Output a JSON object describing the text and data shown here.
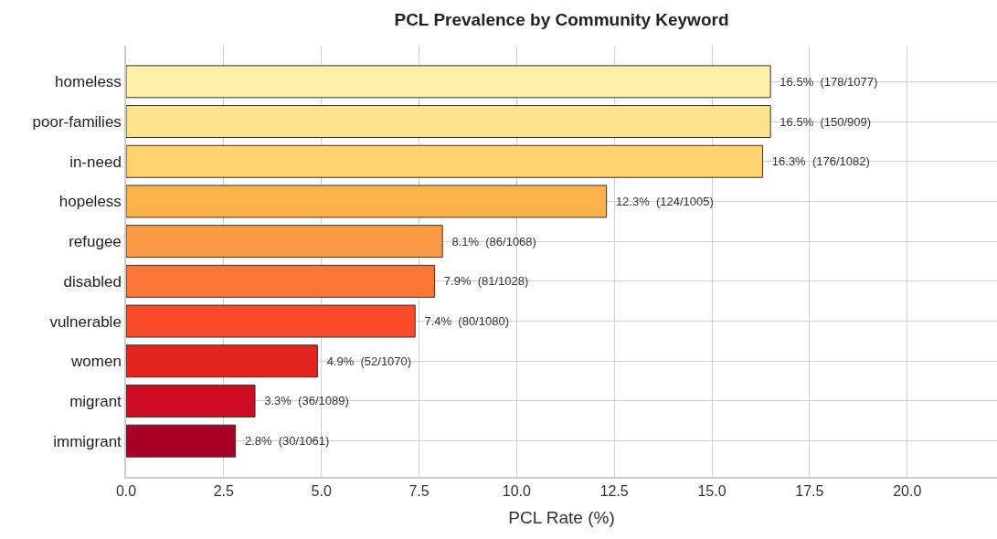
{
  "chart_data": {
    "type": "bar",
    "orientation": "horizontal",
    "title": "PCL Prevalence by Community Keyword",
    "xlabel": "PCL Rate (%)",
    "categories": [
      "homeless",
      "poor-families",
      "in-need",
      "hopeless",
      "refugee",
      "disabled",
      "vulnerable",
      "women",
      "migrant",
      "immigrant"
    ],
    "values": [
      16.5,
      16.5,
      16.3,
      12.3,
      8.1,
      7.9,
      7.4,
      4.9,
      3.3,
      2.8
    ],
    "value_labels": [
      "16.5%  (178/1077)",
      "16.5%  (150/909)",
      "16.3%  (176/1082)",
      "12.3%  (124/1005)",
      "8.1%  (86/1068)",
      "7.9%  (81/1028)",
      "7.4%  (80/1080)",
      "4.9%  (52/1070)",
      "3.3%  (36/1089)",
      "2.8%  (30/1061)"
    ],
    "colors": [
      "#fff0aa",
      "#fee38c",
      "#fed26f",
      "#feb24c",
      "#fd9b44",
      "#fc7735",
      "#f94a2b",
      "#e3241f",
      "#cc0c22",
      "#a80026"
    ],
    "xlim": [
      0,
      22.3
    ],
    "xticks": [
      {
        "value": 0,
        "label": "0.0"
      },
      2.5,
      {
        "value": 5,
        "label": "5.0"
      },
      7.5,
      {
        "value": 10,
        "label": "10.0"
      },
      12.5,
      {
        "value": 15,
        "label": "15.0"
      },
      17.5,
      {
        "value": 20,
        "label": "20.0"
      }
    ],
    "grid": true
  }
}
